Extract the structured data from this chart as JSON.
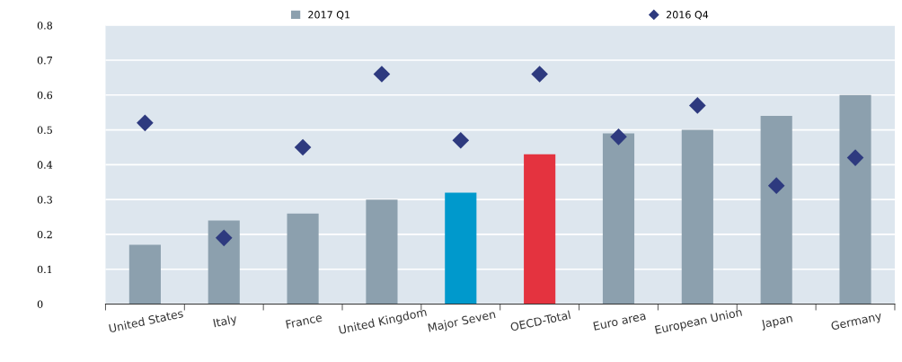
{
  "chart_data": {
    "type": "bar",
    "categories": [
      "United States",
      "Italy",
      "France",
      "United Kingdom",
      "Major Seven",
      "OECD-Total",
      "Euro area",
      "European Union",
      "Japan",
      "Germany"
    ],
    "series": [
      {
        "name": "2017 Q1",
        "color": "#8ca0ae",
        "colors": [
          "#8ca0ae",
          "#8ca0ae",
          "#8ca0ae",
          "#8ca0ae",
          "#0099cc",
          "#e4333f",
          "#8ca0ae",
          "#8ca0ae",
          "#8ca0ae",
          "#8ca0ae"
        ],
        "values": [
          0.17,
          0.24,
          0.26,
          0.3,
          0.32,
          0.43,
          0.49,
          0.5,
          0.54,
          0.6
        ]
      },
      {
        "name": "2016 Q4",
        "type": "scatter",
        "color": "#2e3a7f",
        "marker": "diamond",
        "x": [
          "United States",
          "Italy",
          "France",
          "United Kingdom",
          "Major Seven",
          "OECD-Total",
          "Euro area",
          "European Union",
          "Japan",
          "Germany"
        ],
        "values": [
          0.52,
          0.19,
          0.45,
          0.66,
          0.47,
          0.66,
          0.48,
          0.57,
          0.34,
          0.42
        ]
      }
    ],
    "ylim": [
      0,
      0.8
    ],
    "yticks": [
      {
        "value": 0,
        "label": "0"
      },
      0.1,
      0.2,
      0.3,
      0.4,
      0.5,
      0.6,
      0.7,
      0.8
    ],
    "grid": "y",
    "legend": "top"
  }
}
